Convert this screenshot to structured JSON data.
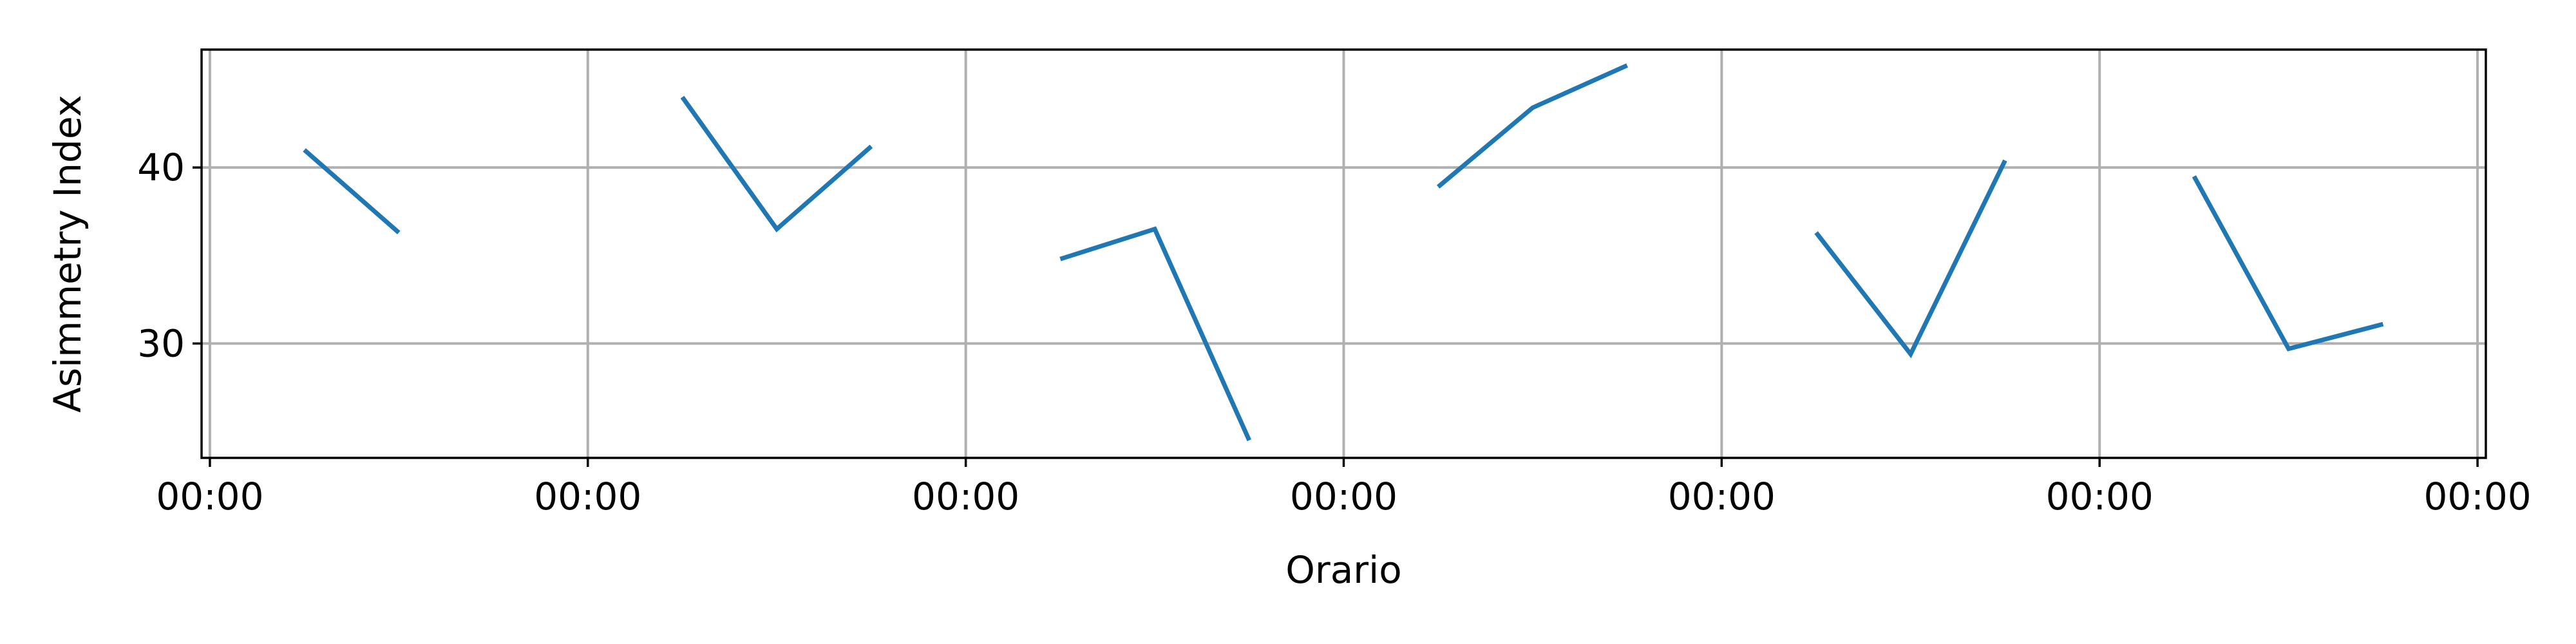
{
  "chart_data": {
    "type": "line",
    "title": "",
    "xlabel": "Orario",
    "ylabel": "Asimmetry Index",
    "ylim": [
      23.5,
      46.7
    ],
    "xlim": [
      -0.022,
      6.022
    ],
    "xticks": [
      0,
      1,
      2,
      3,
      4,
      5,
      6
    ],
    "xtick_labels": [
      "00:00",
      "00:00",
      "00:00",
      "00:00",
      "00:00",
      "00:00",
      "00:00"
    ],
    "yticks": [
      30,
      40
    ],
    "ytick_labels": [
      "30",
      "40"
    ],
    "grid": true,
    "legend": "none",
    "colors": {
      "line": "#1f77b4",
      "grid": "#b0b0b0",
      "axes": "#000000"
    },
    "segments": [
      {
        "x": [
          0.25,
          0.5
        ],
        "y": [
          41.0,
          36.3
        ]
      },
      {
        "x": [
          1.25,
          1.5,
          1.75
        ],
        "y": [
          44.0,
          36.5,
          41.2
        ]
      },
      {
        "x": [
          2.25,
          2.5,
          2.75
        ],
        "y": [
          34.8,
          36.5,
          24.5
        ]
      },
      {
        "x": [
          3.25,
          3.5,
          3.75
        ],
        "y": [
          38.9,
          43.4,
          45.8
        ]
      },
      {
        "x": [
          4.25,
          4.5,
          4.75
        ],
        "y": [
          36.3,
          29.4,
          40.4
        ]
      },
      {
        "x": [
          5.25,
          5.5,
          5.75
        ],
        "y": [
          39.5,
          29.7,
          31.1
        ]
      }
    ]
  }
}
